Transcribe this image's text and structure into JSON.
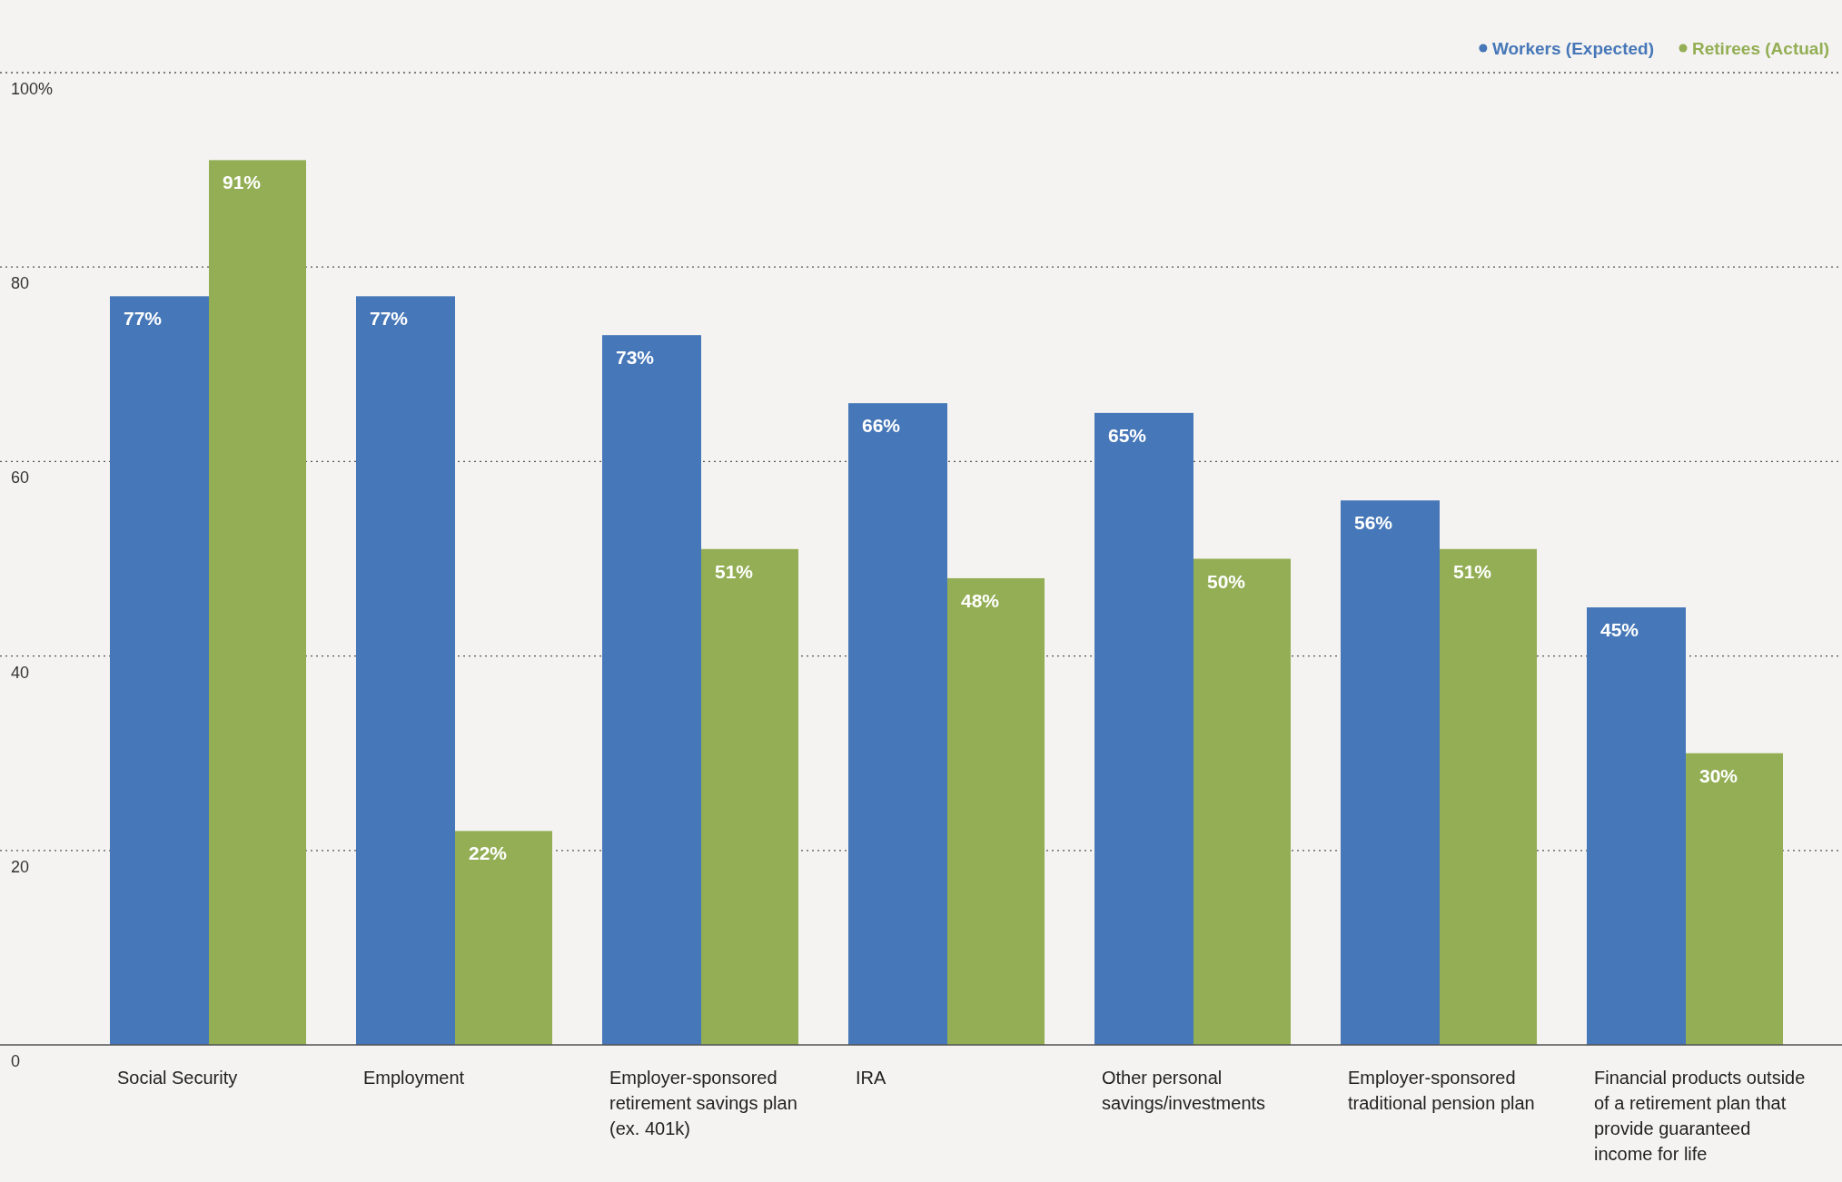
{
  "chart_data": {
    "type": "bar",
    "categories": [
      "Social Security",
      "Employment",
      "Employer-sponsored retirement savings plan (ex. 401k)",
      "IRA",
      "Other personal savings/investments",
      "Employer-sponsored traditional pension plan",
      "Financial products outside of a retirement plan that provide guaranteed income for life"
    ],
    "series": [
      {
        "name": "Workers (Expected)",
        "color": "#4677b8",
        "values": [
          77,
          77,
          73,
          66,
          65,
          56,
          45
        ],
        "value_labels": [
          "77%",
          "77%",
          "73%",
          "66%",
          "65%",
          "56%",
          "45%"
        ]
      },
      {
        "name": "Retirees (Actual)",
        "color": "#93ae54",
        "values": [
          91,
          22,
          51,
          48,
          50,
          51,
          30
        ],
        "value_labels": [
          "91%",
          "22%",
          "51%",
          "48%",
          "50%",
          "51%",
          "30%"
        ]
      }
    ],
    "ylim": [
      0,
      100
    ],
    "yticks": [
      0,
      20,
      40,
      60,
      80,
      {
        "value": 100,
        "label": "100%"
      }
    ],
    "grid": "y",
    "legend": "top right"
  }
}
